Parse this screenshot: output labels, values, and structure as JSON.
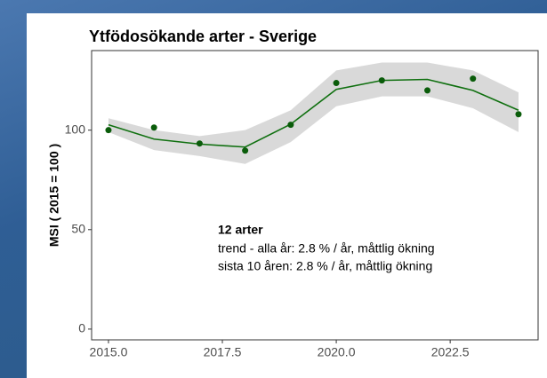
{
  "chart_data": {
    "type": "line",
    "title": "Ytfödosökande arter - Sverige",
    "y_label": "MSI ( 2015 = 100 )",
    "annotation_title": "12 arter",
    "annotation_lines": [
      "trend - alla år: 2.8 % / år, måttlig ökning",
      "sista 10 åren: 2.8 % / år, måttlig ökning"
    ],
    "x": [
      2015,
      2016,
      2017,
      2018,
      2019,
      2020,
      2021,
      2022,
      2023,
      2024
    ],
    "points": {
      "color": "#0a5c0a",
      "values": [
        100,
        101.3,
        93.3,
        89.7,
        102.7,
        123.7,
        125,
        120,
        125.9,
        108
      ]
    },
    "fit": {
      "color": "#107010",
      "values": [
        102.7,
        95.5,
        93,
        91.5,
        103,
        120.5,
        125,
        125.5,
        120,
        110
      ]
    },
    "band": {
      "color": "#d9d9d9",
      "lower": [
        99,
        90,
        87,
        83,
        94,
        112,
        117,
        117,
        111,
        99
      ],
      "upper": [
        106,
        100,
        97,
        100,
        110,
        130,
        134,
        134,
        130,
        119
      ]
    },
    "xlim": [
      2014.63,
      2024.43
    ],
    "ylim": [
      -5.4,
      140
    ],
    "xticks": [
      {
        "value": 2015,
        "label": "2015.0"
      },
      {
        "value": 2017.5,
        "label": "2017.5"
      },
      {
        "value": 2020,
        "label": "2020.0"
      },
      {
        "value": 2022.5,
        "label": "2022.5"
      }
    ],
    "yticks": [
      0,
      50,
      100
    ]
  }
}
